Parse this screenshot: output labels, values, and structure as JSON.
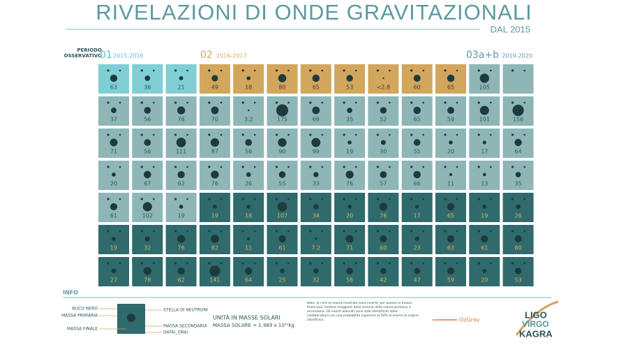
{
  "header": {
    "title": "RIVELAZIONI DI ONDE GRAVITAZIONALI",
    "subtitle": "DAL 2015",
    "period_label": "PERIODO OSSERVATIVO",
    "runs": [
      {
        "label": "01",
        "years": "2015-2016"
      },
      {
        "label": "02",
        "years": "2016-2017"
      },
      {
        "label": "03a+b",
        "years": "2019-2020"
      }
    ]
  },
  "groups": [
    {
      "color": "#7fcfd5",
      "text_color": "#2d5557",
      "finals": [
        63,
        36,
        21
      ]
    },
    {
      "color": "#d2a65c",
      "text_color": "#4a3a1c",
      "finals": [
        49,
        18,
        80,
        65,
        53,
        "<2.8",
        60,
        65
      ]
    },
    {
      "color": "#8fb6b6",
      "text_color": "#2d5557",
      "finals": [
        105,
        null,
        37,
        56,
        76,
        70,
        3.2,
        175,
        69,
        35,
        52,
        65,
        59,
        101,
        156,
        71,
        56,
        111,
        87,
        56,
        90,
        99,
        19,
        30,
        55,
        20,
        17,
        64,
        20,
        67,
        62,
        76,
        26,
        55,
        33,
        76,
        57,
        66,
        11,
        13,
        35,
        61,
        102,
        19
      ]
    },
    {
      "color": "#2f6a6d",
      "text_color": "#e0b25a",
      "finals": [
        19,
        18,
        107,
        34,
        20,
        76,
        17,
        65,
        19,
        26,
        19,
        32,
        76,
        82,
        11,
        61,
        7.2,
        71,
        60,
        23,
        63,
        61,
        60,
        27,
        78,
        62,
        141,
        64,
        25,
        32,
        56,
        42,
        47,
        59,
        20,
        53
      ]
    }
  ],
  "info": {
    "title": "INFO",
    "legend_left": [
      "BUCO NERO",
      "MASSA PRIMARIA",
      "MASSA FINALE"
    ],
    "legend_right": [
      "STELLA DI NEUTRONI",
      "MASSA SECONDARIA",
      "DATA(_ORA)"
    ],
    "units_title": "UNITÀ IN MASSE SOLARI",
    "units_text": "MASSA SOLARE = 1.989 x 10³⁰kg",
    "note": "Nota: le cifre di massa mostrate sono incerte; per questo la massa finale può risultare maggiore della somma della massa primaria e secondaria. Gli eventi elencati sono stati identificati dalle collaborazioni con una probabilità superiore al 50% di essere di origine astrofisica."
  },
  "logos": [
    "OzGrav",
    "LIGO",
    "VIRGO",
    "KAGRA"
  ]
}
